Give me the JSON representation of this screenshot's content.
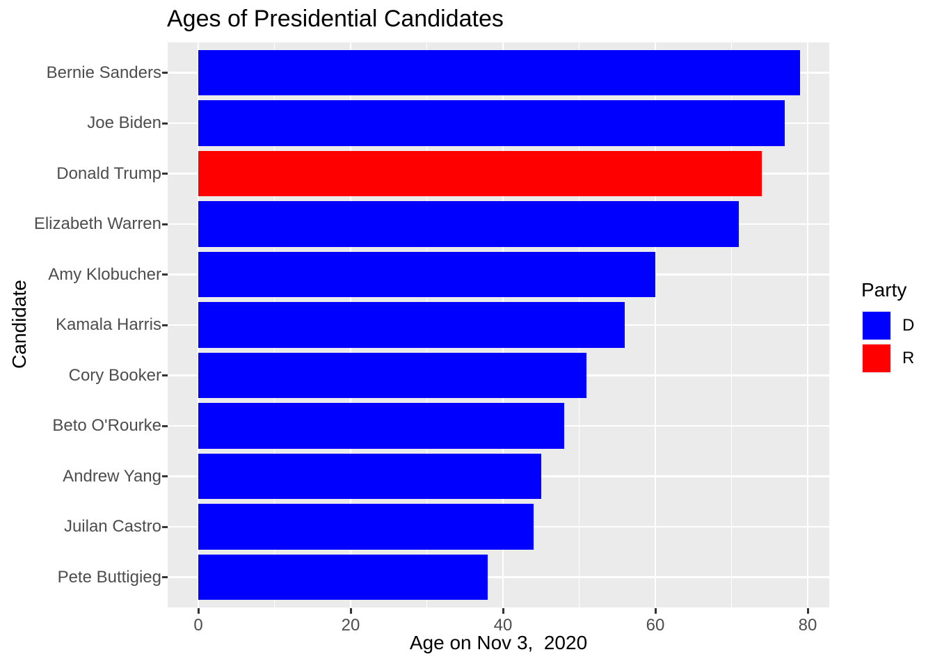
{
  "figure": {
    "title": "Ages of Presidential Candidates"
  },
  "chart_data": {
    "type": "bar",
    "orientation": "horizontal",
    "title": "Ages of Presidential Candidates",
    "xlabel": "Age on Nov 3,  2020",
    "ylabel": "Candidate",
    "categories": [
      "Bernie Sanders",
      "Joe Biden",
      "Donald Trump",
      "Elizabeth Warren",
      "Amy Klobucher",
      "Kamala Harris",
      "Cory Booker",
      "Beto O'Rourke",
      "Andrew Yang",
      "Juilan Castro",
      "Pete Buttigieg"
    ],
    "values": [
      79,
      77,
      74,
      71,
      60,
      56,
      51,
      48,
      45,
      44,
      38
    ],
    "party": [
      "D",
      "D",
      "R",
      "D",
      "D",
      "D",
      "D",
      "D",
      "D",
      "D",
      "D"
    ],
    "colors": {
      "D": "#0000FF",
      "R": "#FF0000"
    },
    "x_ticks": [
      0,
      20,
      40,
      60,
      80
    ],
    "x_minor_gridlines": [
      10,
      30,
      50,
      70
    ],
    "xlim": [
      -4,
      83
    ],
    "grid": true,
    "panel_background": "#EBEBEB",
    "gridline_color": "#FFFFFF",
    "legend": {
      "title": "Party",
      "position": "right",
      "entries": [
        {
          "label": "D",
          "color": "#0000FF"
        },
        {
          "label": "R",
          "color": "#FF0000"
        }
      ]
    }
  }
}
